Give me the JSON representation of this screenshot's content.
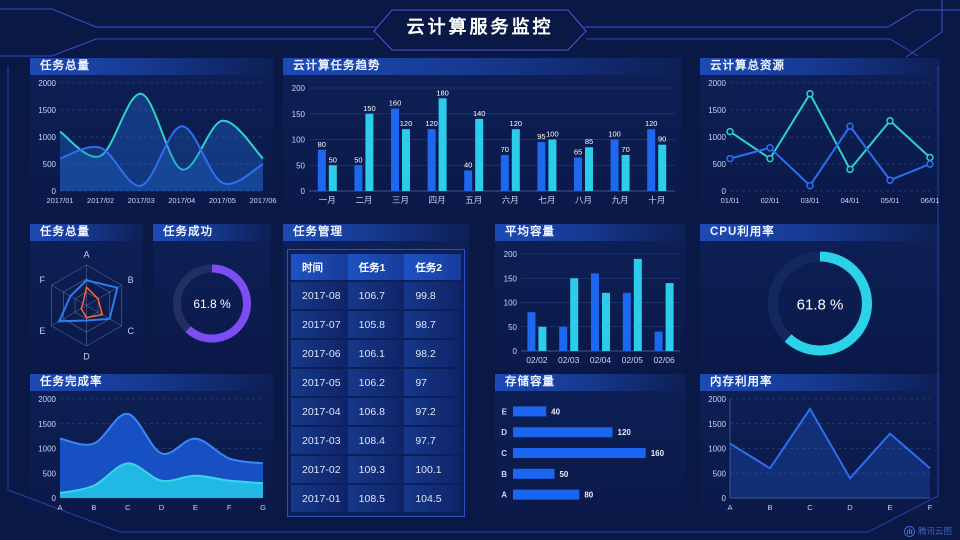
{
  "header": {
    "title": "云计算服务监控"
  },
  "watermark": {
    "label": "腾讯云图"
  },
  "panels": {
    "task_total": {
      "title": "任务总量"
    },
    "cloud_task_trend": {
      "title": "云计算任务趋势"
    },
    "cloud_resources": {
      "title": "云计算总资源"
    },
    "task_total_radar": {
      "title": "任务总量"
    },
    "task_success": {
      "title": "任务成功"
    },
    "task_table": {
      "title": "任务管理"
    },
    "avg_capacity": {
      "title": "平均容量"
    },
    "cpu_usage": {
      "title": "CPU利用率"
    },
    "task_completion": {
      "title": "任务完成率"
    },
    "storage_capacity": {
      "title": "存储容量"
    },
    "memory_usage": {
      "title": "内存利用率"
    }
  },
  "task_table": {
    "columns": [
      "时间",
      "任务1",
      "任务2"
    ],
    "rows": [
      [
        "2017-08",
        "106.7",
        "99.8"
      ],
      [
        "2017-07",
        "105.8",
        "98.7"
      ],
      [
        "2017-06",
        "106.1",
        "98.2"
      ],
      [
        "2017-05",
        "106.2",
        "97"
      ],
      [
        "2017-04",
        "106.8",
        "97.2"
      ],
      [
        "2017-03",
        "108.4",
        "97.7"
      ],
      [
        "2017-02",
        "109.3",
        "100.1"
      ],
      [
        "2017-01",
        "108.5",
        "104.5"
      ]
    ]
  },
  "colors": {
    "background": "#0a1846",
    "accent_blue": "#2e6ef2",
    "accent_cyan": "#2bd3e8",
    "accent_teal": "#30d2c9",
    "accent_purple": "#7b4df2",
    "accent_orange": "#ff6133",
    "frame_line": "#3a4cc4"
  },
  "chart_data": [
    {
      "id": "task-total-trend",
      "type": "line",
      "smooth": true,
      "markers": false,
      "title": "任务总量",
      "x": [
        "2017/01",
        "2017/02",
        "2017/03",
        "2017/04",
        "2017/05",
        "2017/06"
      ],
      "series": [
        {
          "name": "series-teal",
          "color": "#30d2c9",
          "fill": "rgba(32,105,210,0.38)",
          "values": [
            1100,
            650,
            1800,
            400,
            1300,
            600
          ]
        },
        {
          "name": "series-blue",
          "color": "#2e6ef2",
          "fill": "rgba(32,105,210,0.30)",
          "values": [
            600,
            800,
            100,
            1200,
            150,
            500
          ]
        }
      ],
      "ylim": [
        0,
        2000
      ],
      "yticks": [
        0,
        500,
        1000,
        1500,
        2000
      ],
      "grid": "dashed"
    },
    {
      "id": "cloud-task-trend",
      "type": "bar",
      "labels": true,
      "title": "云计算任务趋势",
      "categories": [
        "一月",
        "二月",
        "三月",
        "四月",
        "五月",
        "六月",
        "七月",
        "八月",
        "九月",
        "十月"
      ],
      "series": [
        {
          "name": "series-blue",
          "color": "#1e68f0",
          "values": [
            80,
            50,
            160,
            120,
            40,
            70,
            95,
            65,
            100,
            120
          ]
        },
        {
          "name": "series-cyan",
          "color": "#2bcdeb",
          "values": [
            50,
            150,
            120,
            180,
            140,
            120,
            100,
            85,
            70,
            90
          ]
        }
      ],
      "ylim": [
        0,
        200
      ],
      "yticks": [
        0,
        50,
        100,
        150,
        200
      ]
    },
    {
      "id": "cloud-resources",
      "type": "line",
      "smooth": false,
      "markers": true,
      "title": "云计算总资源",
      "x": [
        "01/01",
        "02/01",
        "03/01",
        "04/01",
        "05/01",
        "06/01"
      ],
      "series": [
        {
          "name": "series-teal",
          "color": "#2bd3c8",
          "values": [
            1100,
            600,
            1800,
            400,
            1300,
            620
          ]
        },
        {
          "name": "series-blue",
          "color": "#2e6ef2",
          "values": [
            600,
            800,
            100,
            1200,
            200,
            500
          ]
        }
      ],
      "ylim": [
        0,
        2000
      ],
      "yticks": [
        0,
        500,
        1000,
        1500,
        2000
      ],
      "grid": "dashed"
    },
    {
      "id": "task-total-radar",
      "type": "radar",
      "title": "任务总量",
      "axes": [
        "A",
        "B",
        "C",
        "D",
        "E",
        "F"
      ],
      "max": 100,
      "series": [
        {
          "name": "series-blue",
          "color": "#2f7bf0",
          "width": 2,
          "values": [
            62,
            88,
            66,
            37,
            78,
            46
          ]
        },
        {
          "name": "series-orange",
          "color": "#ff6133",
          "width": 1.5,
          "values": [
            45,
            33,
            45,
            30,
            15,
            10
          ]
        }
      ]
    },
    {
      "id": "task-success-gauge",
      "type": "donut",
      "title": "任务成功",
      "value": 61.8,
      "label": "61.8 %",
      "color": "#7b4df2",
      "track": "#232e63",
      "stroke": 8,
      "radius": 35,
      "font": 12
    },
    {
      "id": "avg-capacity",
      "type": "bar",
      "labels": false,
      "title": "平均容量",
      "categories": [
        "02/02",
        "02/03",
        "02/04",
        "02/05",
        "02/06"
      ],
      "series": [
        {
          "name": "series-blue",
          "color": "#1e68f0",
          "values": [
            80,
            50,
            160,
            120,
            40
          ]
        },
        {
          "name": "series-cyan",
          "color": "#2bcdeb",
          "values": [
            50,
            150,
            120,
            190,
            140
          ]
        }
      ],
      "ylim": [
        0,
        200
      ],
      "yticks": [
        0,
        50,
        100,
        150,
        200
      ]
    },
    {
      "id": "cpu-gauge",
      "type": "donut",
      "title": "CPU利用率",
      "value": 61.8,
      "label": "61.8 %",
      "color": "#2bd2e8",
      "track": "#13295e",
      "stroke": 10,
      "radius": 47,
      "font": 15
    },
    {
      "id": "task-completion",
      "type": "line",
      "smooth": true,
      "markers": false,
      "title": "任务完成率",
      "x": [
        "A",
        "B",
        "C",
        "D",
        "E",
        "F",
        "G"
      ],
      "series": [
        {
          "name": "series-blue",
          "color": "#3f86f5",
          "fill": "rgba(25,85,205,0.92)",
          "values": [
            1200,
            1100,
            1700,
            900,
            1200,
            800,
            700
          ]
        },
        {
          "name": "series-cyan",
          "color": "#3bd4ef",
          "fill": "rgba(35,190,230,0.95)",
          "values": [
            100,
            250,
            700,
            350,
            450,
            350,
            300
          ]
        }
      ],
      "ylim": [
        0,
        2000
      ],
      "yticks": [
        0,
        500,
        1000,
        1500,
        2000
      ],
      "grid": "dashed"
    },
    {
      "id": "storage-capacity",
      "type": "hbar",
      "title": "存储容量",
      "categories": [
        "E",
        "D",
        "C",
        "B",
        "A"
      ],
      "values": [
        40,
        120,
        160,
        50,
        80
      ],
      "color": "#1b66f0",
      "max": 170
    },
    {
      "id": "memory-usage",
      "type": "line",
      "smooth": false,
      "markers": false,
      "axisLines": true,
      "title": "内存利用率",
      "x": [
        "A",
        "B",
        "C",
        "D",
        "E",
        "F"
      ],
      "series": [
        {
          "name": "series-blue",
          "color": "#2e6ef2",
          "fill": "rgba(33,92,210,0.30)",
          "values": [
            1100,
            600,
            1800,
            400,
            1300,
            600
          ]
        }
      ],
      "ylim": [
        0,
        2000
      ],
      "yticks": [
        0,
        500,
        1000,
        1500,
        2000
      ],
      "grid": "dashed"
    }
  ]
}
